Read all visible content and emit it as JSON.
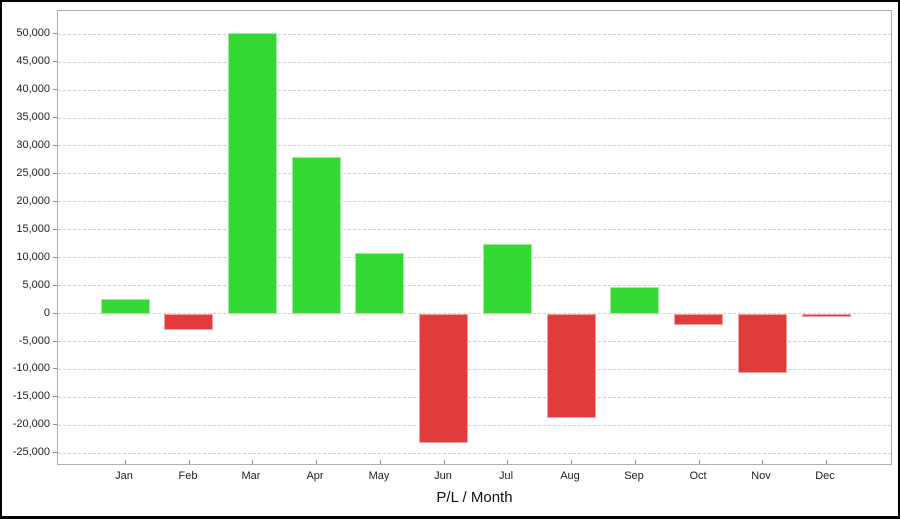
{
  "window": {
    "background": "#ffffff",
    "frame_border_color": "#000000"
  },
  "chart_data": {
    "type": "bar",
    "title": "P/L / Month",
    "xlabel": "P/L / Month",
    "ylabel": "",
    "categories": [
      "Jan",
      "Feb",
      "Mar",
      "Apr",
      "May",
      "Jun",
      "Jul",
      "Aug",
      "Sep",
      "Oct",
      "Nov",
      "Dec"
    ],
    "series": [
      {
        "name": "P/L",
        "values": [
          2600,
          -3000,
          50300,
          28000,
          10800,
          -23200,
          12500,
          -18700,
          4700,
          -2000,
          -10700,
          -600
        ]
      }
    ],
    "positive_color": "#35d835",
    "negative_color": "#e23b3b",
    "positive_border_color": "#9bee9b",
    "negative_border_color": "#f2a0a0",
    "ylim": [
      -27270,
      54150
    ],
    "ytick_step": 5000,
    "y_ticks": [
      {
        "value": 50000,
        "label": "50,000"
      },
      {
        "value": 45000,
        "label": "45,000"
      },
      {
        "value": 40000,
        "label": "40,000"
      },
      {
        "value": 35000,
        "label": "35,000"
      },
      {
        "value": 30000,
        "label": "30,000"
      },
      {
        "value": 25000,
        "label": "25,000"
      },
      {
        "value": 20000,
        "label": "20,000"
      },
      {
        "value": 15000,
        "label": "15,000"
      },
      {
        "value": 10000,
        "label": "10,000"
      },
      {
        "value": 5000,
        "label": "5,000"
      },
      {
        "value": 0,
        "label": "0"
      },
      {
        "value": -5000,
        "label": "-5,000"
      },
      {
        "value": -10000,
        "label": "-10,000"
      },
      {
        "value": -15000,
        "label": "-15,000"
      },
      {
        "value": -20000,
        "label": "-20,000"
      },
      {
        "value": -25000,
        "label": "-25,000"
      }
    ],
    "grid": {
      "horizontal": "dashed",
      "gridline_color": "#d0d0d0",
      "axis_border_color": "#b0b0b0",
      "tick_color": "#909090"
    },
    "legend_position": "none"
  }
}
